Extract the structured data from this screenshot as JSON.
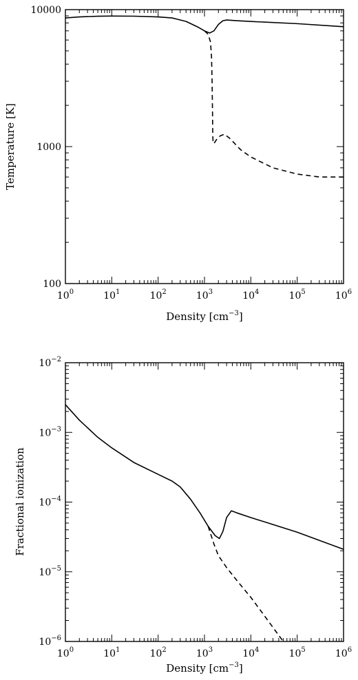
{
  "chart_data": [
    {
      "type": "line",
      "xlabel": "Density [cm",
      "xlabel_unit_exp": "−3",
      "xlabel_suffix": "]",
      "ylabel": "Temperature [K]",
      "xscale": "log",
      "yscale": "log",
      "xlim": [
        1,
        1000000
      ],
      "ylim": [
        100,
        10000
      ],
      "x_ticks": [
        {
          "base": "10",
          "exp": "0",
          "value": 1
        },
        {
          "base": "10",
          "exp": "1",
          "value": 10
        },
        {
          "base": "10",
          "exp": "2",
          "value": 100
        },
        {
          "base": "10",
          "exp": "3",
          "value": 1000
        },
        {
          "base": "10",
          "exp": "4",
          "value": 10000
        },
        {
          "base": "10",
          "exp": "5",
          "value": 100000
        },
        {
          "base": "10",
          "exp": "6",
          "value": 1000000
        }
      ],
      "y_ticks": [
        {
          "label": "100",
          "value": 100
        },
        {
          "label": "1000",
          "value": 1000
        },
        {
          "label": "10000",
          "value": 10000
        }
      ],
      "grid": false,
      "series": [
        {
          "style": "solid",
          "color": "#000000",
          "points": [
            [
              1,
              8700
            ],
            [
              2,
              8850
            ],
            [
              5,
              8950
            ],
            [
              10,
              8980
            ],
            [
              30,
              8960
            ],
            [
              100,
              8850
            ],
            [
              200,
              8700
            ],
            [
              400,
              8200
            ],
            [
              700,
              7500
            ],
            [
              1000,
              7000
            ],
            [
              1300,
              6750
            ],
            [
              1600,
              7000
            ],
            [
              2000,
              7800
            ],
            [
              2500,
              8300
            ],
            [
              3000,
              8400
            ],
            [
              5000,
              8300
            ],
            [
              10000,
              8200
            ],
            [
              100000,
              7900
            ],
            [
              1000000,
              7500
            ]
          ]
        },
        {
          "style": "dashed",
          "color": "#000000",
          "points": [
            [
              1000,
              7000
            ],
            [
              1200,
              6600
            ],
            [
              1350,
              5800
            ],
            [
              1420,
              4500
            ],
            [
              1460,
              3000
            ],
            [
              1490,
              1800
            ],
            [
              1510,
              1200
            ],
            [
              1530,
              1100
            ],
            [
              1600,
              1050
            ],
            [
              1800,
              1120
            ],
            [
              2200,
              1200
            ],
            [
              2700,
              1230
            ],
            [
              3500,
              1150
            ],
            [
              6000,
              950
            ],
            [
              10000,
              840
            ],
            [
              30000,
              700
            ],
            [
              100000,
              630
            ],
            [
              300000,
              600
            ],
            [
              1000000,
              600
            ]
          ]
        }
      ]
    },
    {
      "type": "line",
      "xlabel": "Density [cm",
      "xlabel_unit_exp": "−3",
      "xlabel_suffix": "]",
      "ylabel": "Fractional ionization",
      "xscale": "log",
      "yscale": "log",
      "xlim": [
        1,
        1000000
      ],
      "ylim": [
        1e-06,
        0.01
      ],
      "x_ticks": [
        {
          "base": "10",
          "exp": "0",
          "value": 1
        },
        {
          "base": "10",
          "exp": "1",
          "value": 10
        },
        {
          "base": "10",
          "exp": "2",
          "value": 100
        },
        {
          "base": "10",
          "exp": "3",
          "value": 1000
        },
        {
          "base": "10",
          "exp": "4",
          "value": 10000
        },
        {
          "base": "10",
          "exp": "5",
          "value": 100000
        },
        {
          "base": "10",
          "exp": "6",
          "value": 1000000
        }
      ],
      "y_ticks": [
        {
          "base": "10",
          "exp": "−6",
          "value": 1e-06
        },
        {
          "base": "10",
          "exp": "−5",
          "value": 1e-05
        },
        {
          "base": "10",
          "exp": "−4",
          "value": 0.0001
        },
        {
          "base": "10",
          "exp": "−3",
          "value": 0.001
        },
        {
          "base": "10",
          "exp": "−2",
          "value": 0.01
        }
      ],
      "grid": false,
      "series": [
        {
          "style": "solid",
          "color": "#000000",
          "points": [
            [
              1,
              0.0025
            ],
            [
              2,
              0.0015
            ],
            [
              5,
              0.00085
            ],
            [
              10,
              0.0006
            ],
            [
              30,
              0.00037
            ],
            [
              100,
              0.00025
            ],
            [
              200,
              0.0002
            ],
            [
              300,
              0.000165
            ],
            [
              500,
              0.00011
            ],
            [
              800,
              7e-05
            ],
            [
              1200,
              4.5e-05
            ],
            [
              1700,
              3.3e-05
            ],
            [
              2100,
              3e-05
            ],
            [
              2500,
              3.8e-05
            ],
            [
              3000,
              6e-05
            ],
            [
              3800,
              7.5e-05
            ],
            [
              5000,
              7e-05
            ],
            [
              10000,
              6e-05
            ],
            [
              100000,
              3.7e-05
            ],
            [
              1000000,
              2.1e-05
            ]
          ]
        },
        {
          "style": "dashed",
          "color": "#000000",
          "points": [
            [
              1200,
              4.5e-05
            ],
            [
              1600,
              2.5e-05
            ],
            [
              2000,
              1.7e-05
            ],
            [
              3000,
              1.15e-05
            ],
            [
              5000,
              7.5e-06
            ],
            [
              10000,
              4.3e-06
            ],
            [
              20000,
              2.3e-06
            ],
            [
              50000,
              1e-06
            ]
          ]
        }
      ]
    }
  ]
}
